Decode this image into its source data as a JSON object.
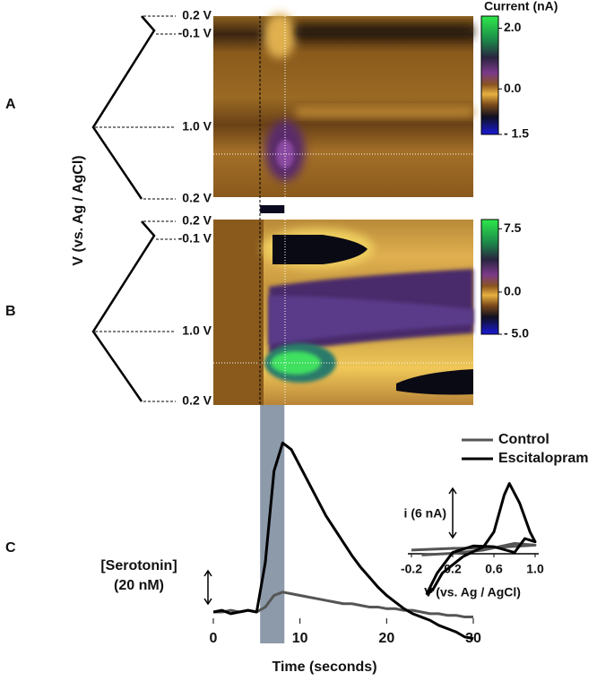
{
  "chart_data": [
    {
      "type": "heatmap",
      "panel_label": "A",
      "ylabel": "V (vs. Ag / AgCl)",
      "potential_labels": [
        "0.2 V",
        "-0.1 V",
        "1.0 V",
        "0.2 V"
      ],
      "colorbar_title": "Current (nA)",
      "colorbar_lim": [
        -1.5,
        2.4
      ],
      "colorbar_ticks": [
        {
          "value": 2.0,
          "label": "2.0"
        },
        {
          "value": 0,
          "label": "0.0"
        },
        {
          "value": -1.5,
          "label": "- 1.5"
        }
      ]
    },
    {
      "type": "heatmap",
      "panel_label": "B",
      "potential_labels": [
        "0.2 V",
        "-0.1 V",
        "1.0 V",
        "0.2 V"
      ],
      "colorbar_lim": [
        -5.0,
        8.6
      ],
      "colorbar_ticks": [
        {
          "value": 7.5,
          "label": "7.5"
        },
        {
          "value": 0,
          "label": "0.0"
        },
        {
          "value": -5.0,
          "label": "- 5.0"
        }
      ]
    },
    {
      "type": "line",
      "panel_label": "C",
      "xlabel": "Time (seconds)",
      "xlim": [
        0,
        30
      ],
      "xticks": [
        0,
        10,
        20,
        30
      ],
      "stimulus_x": [
        5.4,
        8.2
      ],
      "scale_bar": {
        "label": "[Serotonin]",
        "value_label": "(20 nM)",
        "value": 20
      },
      "x": [
        0,
        1,
        2,
        3,
        4,
        5,
        6,
        7,
        8,
        9,
        10,
        11,
        12,
        13,
        14,
        15,
        16,
        17,
        18,
        19,
        20,
        21,
        22,
        23,
        24,
        25,
        26,
        27,
        28,
        29,
        30
      ],
      "series": [
        {
          "name": "Control",
          "color": "#555555",
          "values": [
            0,
            0,
            1,
            0,
            1,
            0,
            3,
            10,
            12,
            11,
            10,
            9,
            8,
            7,
            6,
            5,
            5,
            4,
            3,
            3,
            2,
            2,
            1,
            1,
            0,
            -1,
            -1,
            -2,
            -2,
            -3,
            -3
          ]
        },
        {
          "name": "Escitalopram",
          "color": "#000000",
          "values": [
            0,
            1,
            -1,
            0,
            1,
            0,
            30,
            85,
            102,
            98,
            88,
            78,
            68,
            58,
            50,
            42,
            34,
            27,
            21,
            15,
            10,
            6,
            2,
            -1,
            -3,
            -5,
            -8,
            -10,
            -12,
            -15,
            -16
          ]
        }
      ]
    },
    {
      "type": "cv",
      "xlabel": "V (vs. Ag / AgCl)",
      "xlim": [
        -0.2,
        1.0
      ],
      "xticks": [
        -0.2,
        0.2,
        0.6,
        {
          "value": 1.0,
          "label": "1.0"
        }
      ],
      "scale_bar": {
        "label": "i (6 nA)",
        "value": 6
      },
      "series": [
        {
          "color": "#555555",
          "x": [
            -0.2,
            0.2,
            0.6,
            1.0,
            0.8,
            0.5,
            0.2,
            -0.1
          ],
          "values": [
            -0.2,
            0,
            0.1,
            0.4,
            0.6,
            -0.2,
            -0.6,
            -0.8
          ]
        },
        {
          "color": "#000000",
          "x": [
            0.0,
            0.1,
            0.3,
            0.5,
            0.6,
            0.7,
            0.75,
            0.85,
            0.95,
            1.0,
            0.9,
            0.8,
            0.6,
            0.4,
            0.2,
            0.05,
            -0.05,
            0.0
          ],
          "values": [
            -5.2,
            -3,
            -1,
            0.2,
            2,
            6.5,
            7.9,
            5.5,
            2,
            0.8,
            1.2,
            -0.5,
            0.2,
            0.3,
            -0.5,
            -3,
            -5.5,
            -5.2
          ]
        }
      ]
    }
  ]
}
